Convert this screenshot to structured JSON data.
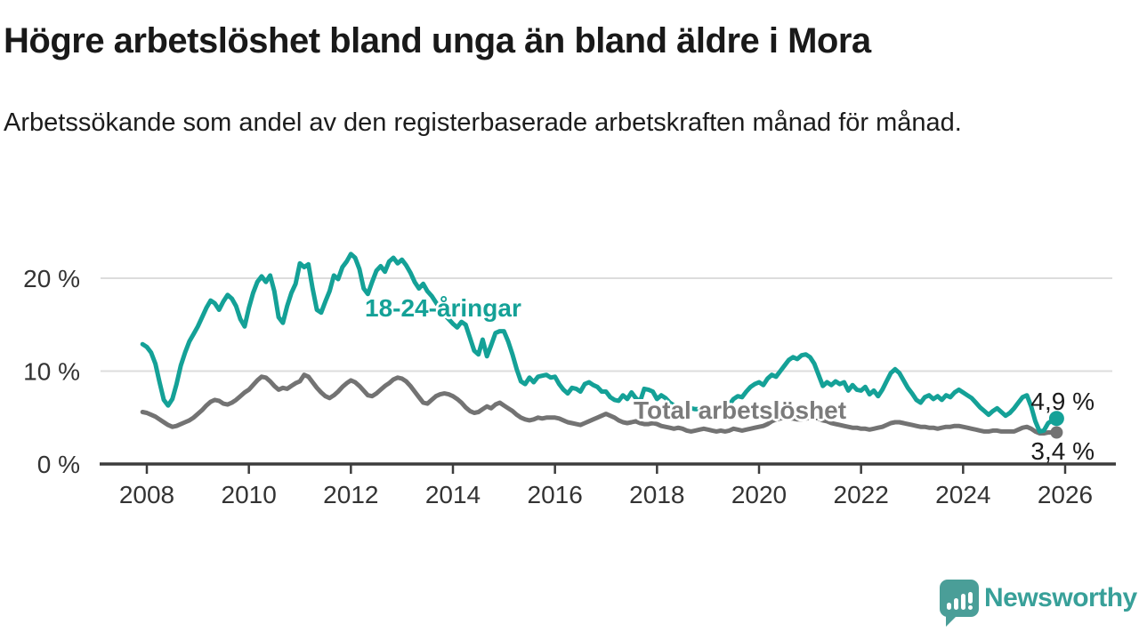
{
  "header": {
    "title": "Högre arbetslöshet bland unga än bland äldre i Mora",
    "subtitle": "Arbetssökande som andel av den registerbaserade arbetskraften månad för månad."
  },
  "chart_data": {
    "type": "line",
    "title": "Högre arbetslöshet bland unga än bland äldre i Mora",
    "subtitle": "Arbetssökande som andel av den registerbaserade arbetskraften månad för månad.",
    "x_start": 2007.916667,
    "x_step_years": 0.0833333,
    "x_ticks": [
      2008,
      2010,
      2012,
      2014,
      2016,
      2018,
      2020,
      2022,
      2024,
      2026
    ],
    "x_tick_labels": [
      "2008",
      "2010",
      "2012",
      "2014",
      "2016",
      "2018",
      "2020",
      "2022",
      "2024",
      "2026"
    ],
    "y_ticks": [
      0,
      10,
      20
    ],
    "y_tick_labels": [
      "0 %",
      "10 %",
      "20 %"
    ],
    "ylim": [
      0,
      24
    ],
    "xlim": [
      2007.1,
      2027.0
    ],
    "grid": "horizontal",
    "legend_position": "inline-labels",
    "colors": {
      "youth": "#14a197",
      "total": "#737373",
      "axis": "#3c3c3c",
      "gridline": "#dcdcdc"
    },
    "series": [
      {
        "name": "18-24-åringar",
        "color": "#14a197",
        "end_label": "4,9 %",
        "end_value": 4.9,
        "values": [
          12.9,
          12.6,
          12.0,
          10.8,
          8.8,
          6.9,
          6.3,
          7.0,
          8.6,
          10.6,
          12.0,
          13.2,
          14.0,
          14.8,
          15.8,
          16.8,
          17.6,
          17.3,
          16.6,
          17.5,
          18.2,
          17.8,
          17.0,
          15.6,
          14.8,
          16.8,
          18.4,
          19.6,
          20.2,
          19.6,
          20.3,
          18.6,
          15.8,
          15.2,
          17.0,
          18.4,
          19.4,
          21.6,
          21.2,
          21.5,
          18.9,
          16.6,
          16.3,
          17.5,
          18.6,
          20.3,
          19.9,
          21.2,
          21.8,
          22.6,
          22.2,
          21.0,
          18.9,
          18.3,
          19.6,
          20.8,
          21.3,
          20.7,
          21.8,
          22.2,
          21.6,
          22.0,
          21.4,
          20.6,
          19.6,
          18.9,
          19.4,
          18.6,
          18.1,
          17.4,
          16.7,
          16.1,
          15.6,
          15.1,
          14.7,
          15.3,
          15.0,
          13.6,
          12.2,
          11.8,
          13.4,
          11.6,
          12.8,
          14.1,
          14.3,
          14.3,
          13.2,
          11.8,
          10.2,
          8.9,
          8.6,
          9.3,
          8.8,
          9.4,
          9.5,
          9.6,
          9.3,
          9.4,
          8.6,
          8.0,
          7.6,
          8.2,
          8.1,
          7.8,
          8.6,
          8.8,
          8.5,
          8.3,
          7.8,
          7.8,
          7.2,
          6.9,
          6.8,
          7.4,
          7.0,
          7.7,
          7.1,
          6.7,
          8.1,
          8.0,
          7.8,
          7.0,
          7.4,
          7.1,
          6.6,
          6.3,
          6.0,
          5.9,
          6.1,
          6.0,
          5.9,
          5.9,
          5.8,
          5.8,
          5.9,
          6.0,
          6.2,
          6.5,
          6.4,
          7.0,
          7.3,
          7.2,
          7.8,
          8.3,
          8.6,
          8.8,
          8.5,
          9.2,
          9.6,
          9.4,
          10.0,
          10.6,
          11.2,
          11.5,
          11.3,
          11.7,
          11.8,
          11.5,
          10.8,
          9.6,
          8.4,
          8.8,
          8.5,
          8.9,
          8.6,
          8.8,
          7.9,
          8.5,
          8.0,
          7.9,
          8.3,
          7.5,
          7.9,
          7.3,
          8.0,
          8.9,
          9.8,
          10.2,
          9.8,
          9.0,
          8.2,
          7.6,
          6.9,
          6.6,
          7.2,
          7.4,
          7.0,
          7.3,
          6.9,
          7.4,
          7.2,
          7.7,
          8.0,
          7.7,
          7.4,
          7.1,
          6.6,
          6.1,
          5.7,
          5.3,
          5.7,
          6.0,
          5.6,
          5.2,
          5.5,
          6.0,
          6.6,
          7.2,
          7.4,
          6.2,
          4.6,
          3.5,
          3.6,
          4.4,
          4.7,
          4.9
        ]
      },
      {
        "name": "Total arbetslöshet",
        "color": "#737373",
        "end_label": "3,4 %",
        "end_value": 3.4,
        "values": [
          5.6,
          5.5,
          5.3,
          5.1,
          4.8,
          4.5,
          4.2,
          4.0,
          4.1,
          4.3,
          4.5,
          4.7,
          5.0,
          5.4,
          5.8,
          6.3,
          6.7,
          6.9,
          6.8,
          6.5,
          6.4,
          6.6,
          6.9,
          7.3,
          7.7,
          8.0,
          8.5,
          9.0,
          9.4,
          9.3,
          8.9,
          8.4,
          8.0,
          8.2,
          8.1,
          8.4,
          8.7,
          8.9,
          9.6,
          9.4,
          8.8,
          8.2,
          7.7,
          7.3,
          7.1,
          7.4,
          7.8,
          8.3,
          8.7,
          9.0,
          8.8,
          8.4,
          7.9,
          7.4,
          7.3,
          7.6,
          8.0,
          8.4,
          8.7,
          9.1,
          9.3,
          9.2,
          8.9,
          8.4,
          7.8,
          7.2,
          6.6,
          6.5,
          6.9,
          7.3,
          7.5,
          7.6,
          7.5,
          7.3,
          7.0,
          6.6,
          6.1,
          5.7,
          5.5,
          5.6,
          5.9,
          6.2,
          6.0,
          6.4,
          6.6,
          6.3,
          6.0,
          5.7,
          5.3,
          5.0,
          4.8,
          4.7,
          4.8,
          5.0,
          4.9,
          5.0,
          5.0,
          5.0,
          4.9,
          4.7,
          4.5,
          4.4,
          4.3,
          4.2,
          4.4,
          4.6,
          4.8,
          5.0,
          5.2,
          5.4,
          5.2,
          5.0,
          4.7,
          4.5,
          4.4,
          4.5,
          4.6,
          4.4,
          4.3,
          4.3,
          4.4,
          4.3,
          4.1,
          4.0,
          3.9,
          3.8,
          3.9,
          3.8,
          3.6,
          3.5,
          3.6,
          3.7,
          3.8,
          3.7,
          3.6,
          3.5,
          3.6,
          3.5,
          3.6,
          3.8,
          3.7,
          3.6,
          3.7,
          3.8,
          3.9,
          4.0,
          4.1,
          4.3,
          4.6,
          4.8,
          4.9,
          5.0,
          4.9,
          4.9,
          4.8,
          4.8,
          4.9,
          5.0,
          5.0,
          4.9,
          4.7,
          4.6,
          4.4,
          4.3,
          4.2,
          4.1,
          4.0,
          3.9,
          3.9,
          3.8,
          3.8,
          3.7,
          3.8,
          3.9,
          4.0,
          4.2,
          4.4,
          4.5,
          4.5,
          4.4,
          4.3,
          4.2,
          4.1,
          4.0,
          4.0,
          3.9,
          3.9,
          3.8,
          3.9,
          4.0,
          4.0,
          4.1,
          4.1,
          4.0,
          3.9,
          3.8,
          3.7,
          3.6,
          3.5,
          3.5,
          3.6,
          3.6,
          3.5,
          3.5,
          3.5,
          3.5,
          3.7,
          3.9,
          4.0,
          3.8,
          3.5,
          3.3,
          3.3,
          3.4,
          3.4,
          3.4
        ]
      }
    ]
  },
  "branding": {
    "logo_text": "Newsworthy"
  }
}
